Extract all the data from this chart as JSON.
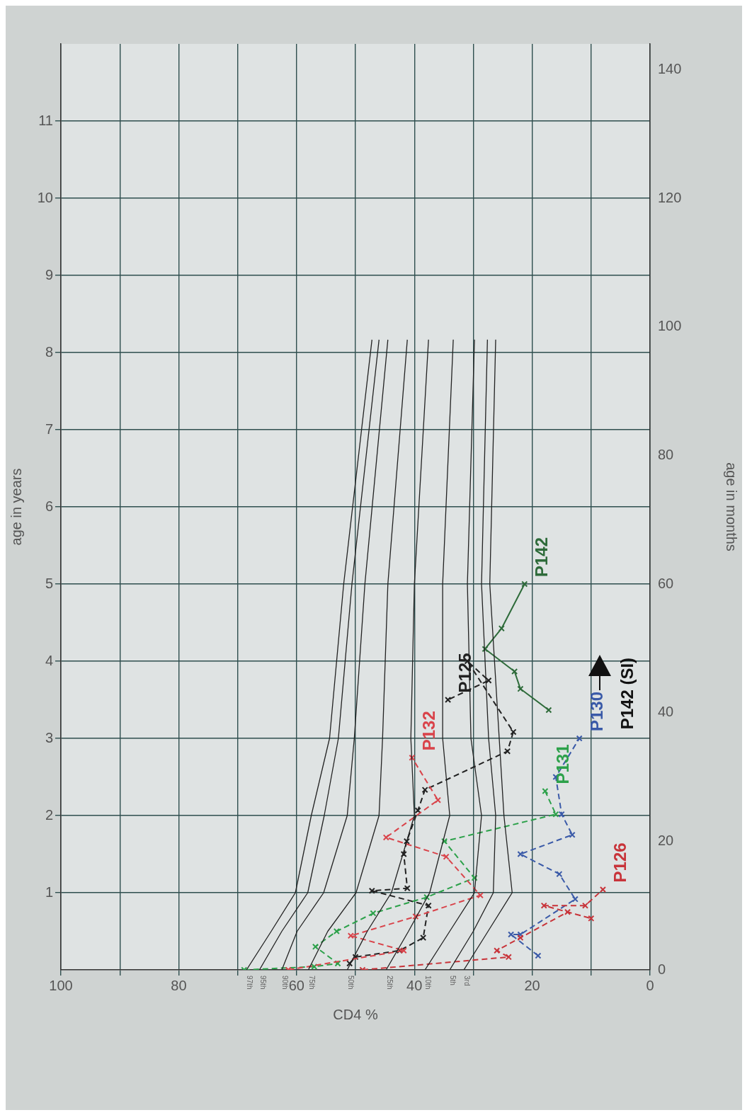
{
  "chart_data": {
    "type": "line",
    "orientation": "horizontal",
    "xlabel": "CD4 %",
    "ylabel": "age in months",
    "y2label": "age in years",
    "xlim": [
      100,
      0
    ],
    "xticks": [
      0,
      {
        "value": 10,
        "label": null
      },
      20,
      {
        "value": 30,
        "label": null
      },
      40,
      {
        "value": 50,
        "label": null
      },
      60,
      {
        "value": 70,
        "label": null
      },
      80,
      {
        "value": 90,
        "label": null
      },
      100
    ],
    "ylim": [
      0,
      144
    ],
    "yticks": [
      0,
      20,
      40,
      60,
      80,
      100,
      120,
      140
    ],
    "y2lim": [
      0,
      12
    ],
    "y2ticks": [
      1,
      2,
      3,
      4,
      5,
      6,
      7,
      8,
      9,
      10,
      11
    ],
    "grid": true,
    "series": [
      {
        "name": "97th",
        "color": "#222222",
        "marker": "none",
        "line_style": "solid",
        "x": [
          0,
          6,
          12,
          24,
          36,
          60,
          98
        ],
        "values": [
          68.5,
          64.3,
          60.2,
          57.5,
          54.4,
          52,
          47.2
        ]
      },
      {
        "name": "95th",
        "color": "#222222",
        "marker": "none",
        "line_style": "solid",
        "x": [
          0,
          6,
          12,
          24,
          36,
          60,
          98
        ],
        "values": [
          66.3,
          62.5,
          58.1,
          55.3,
          52.9,
          50.6,
          46
        ]
      },
      {
        "name": "90th",
        "color": "#222222",
        "marker": "none",
        "line_style": "solid",
        "x": [
          0,
          6,
          12,
          24,
          36,
          60,
          98
        ],
        "values": [
          62.5,
          59.9,
          55.4,
          51.4,
          50.2,
          48.4,
          44.5
        ]
      },
      {
        "name": "75th",
        "color": "#222222",
        "marker": "none",
        "line_style": "solid",
        "x": [
          0,
          6,
          12,
          24,
          36,
          60,
          98
        ],
        "values": [
          58,
          54.7,
          49.9,
          46,
          45.4,
          44.5,
          41.2
        ]
      },
      {
        "name": "50th",
        "color": "#222222",
        "marker": "none",
        "line_style": "solid",
        "x": [
          0,
          6,
          12,
          24,
          36,
          60,
          98
        ],
        "values": [
          51.4,
          48,
          43.9,
          40,
          40.6,
          40,
          37.6
        ]
      },
      {
        "name": "25th",
        "color": "#222222",
        "marker": "none",
        "line_style": "solid",
        "x": [
          0,
          6,
          12,
          24,
          36,
          60,
          98
        ],
        "values": [
          44.8,
          41,
          37.4,
          34,
          35.2,
          35.2,
          33.4
        ]
      },
      {
        "name": "10th",
        "color": "#222222",
        "marker": "none",
        "line_style": "solid",
        "x": [
          0,
          6,
          12,
          24,
          36,
          60,
          98
        ],
        "values": [
          38.2,
          34,
          29.8,
          28.6,
          30.4,
          31,
          29.8
        ]
      },
      {
        "name": "5th",
        "color": "#222222",
        "marker": "none",
        "line_style": "solid",
        "x": [
          0,
          6,
          12,
          24,
          36,
          60,
          98
        ],
        "values": [
          34,
          30,
          26.6,
          26.2,
          27.4,
          28.6,
          27.6
        ]
      },
      {
        "name": "3rd",
        "color": "#222222",
        "marker": "none",
        "line_style": "solid",
        "x": [
          0,
          6,
          12,
          24,
          36,
          60,
          98
        ],
        "values": [
          31.6,
          27.5,
          23.4,
          24.8,
          25.6,
          27.2,
          26.2
        ]
      },
      {
        "name": "P132",
        "color": "#d9434a",
        "marker": "cross",
        "line_style": "dashed",
        "x": [
          0,
          3,
          5.3,
          8.3,
          11.6,
          17.6,
          20.6,
          26.4,
          33
        ],
        "values": [
          61.4,
          41.8,
          50.8,
          39.8,
          28.8,
          34.6,
          44.8,
          36,
          40.4
        ]
      },
      {
        "name": "P126",
        "color": "#c8343a",
        "marker": "cross",
        "line_style": "dashed",
        "x": [
          0,
          2,
          3,
          5,
          9,
          8,
          10,
          10,
          12.5
        ],
        "values": [
          48.8,
          24,
          26,
          22,
          14,
          10,
          18,
          11,
          8
        ]
      },
      {
        "name": "P131",
        "color": "#2ca14a",
        "marker": "cross",
        "line_style": "dashed",
        "x": [
          0,
          0.5,
          1,
          3.6,
          6,
          8.8,
          11.3,
          14.3,
          20,
          24.2,
          27.8
        ],
        "values": [
          68.9,
          57,
          53,
          56.8,
          53.2,
          47,
          37.9,
          29.8,
          34.9,
          16,
          17.8
        ]
      },
      {
        "name": "P130",
        "color": "#3a5aa8",
        "marker": "cross",
        "line_style": "dashed",
        "x": [
          2.2,
          5.5,
          5.5,
          11,
          14.9,
          18,
          21,
          24.2,
          30,
          36
        ],
        "values": [
          19,
          23.6,
          22,
          12.7,
          15.4,
          22,
          13.2,
          15,
          16,
          12
        ]
      },
      {
        "name": "P125",
        "color": "#222222",
        "marker": "cross",
        "line_style": "dashed",
        "x": [
          1,
          2,
          3,
          5,
          10,
          12.3,
          12.7,
          18,
          20,
          24.8,
          28,
          34,
          37,
          48,
          45,
          42
        ],
        "values": [
          51,
          50,
          42.5,
          38.5,
          37.6,
          47.2,
          41.2,
          41.8,
          41.3,
          39.4,
          38.2,
          24.2,
          23.2,
          31,
          27.4,
          34.3
        ]
      },
      {
        "name": "P142",
        "color": "#2e6b3a",
        "marker": "cross",
        "line_style": "solid",
        "x": [
          40.4,
          43.7,
          46.4,
          49.9,
          53.1,
          60
        ],
        "values": [
          17.2,
          22,
          23,
          28,
          25.2,
          21.3
        ]
      }
    ],
    "annotations": [
      "P142 (SI)"
    ]
  }
}
